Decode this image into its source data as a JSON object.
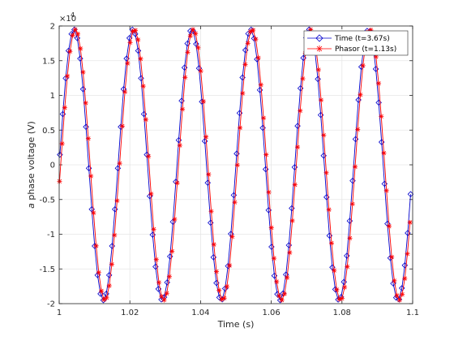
{
  "chart_data": {
    "type": "line",
    "title": "",
    "xlabel": "Time (s)",
    "ylabel": "a phase voltage (V)",
    "ylabel_parts": {
      "var": "a",
      "rest": " phase voltage (V)"
    },
    "exponent_base": "×10",
    "exponent_power": "4",
    "xlim": [
      1.0,
      1.1
    ],
    "ylim": [
      -2.0,
      2.0
    ],
    "y_scale_factor": 10000,
    "xticks": [
      "1",
      "1.02",
      "1.04",
      "1.06",
      "1.08",
      "1.1"
    ],
    "yticks": [
      "-2",
      "-1.5",
      "-1",
      "-0.5",
      "0",
      "0.5",
      "1",
      "1.5",
      "2"
    ],
    "grid": true,
    "legend_position": "top-right",
    "series": [
      {
        "name": "Time (t=3.67s)",
        "color": "#0000cc",
        "marker": "diamond",
        "amplitude": 1.95,
        "frequency_hz": 60,
        "phase_rad": 0.0,
        "x_start": 1.0002,
        "x_step": 0.00082,
        "x_end": 1.0998
      },
      {
        "name": "Phasor (t=1.13s)",
        "color": "#ff0000",
        "marker": "star",
        "amplitude": 1.95,
        "frequency_hz": 60,
        "phase_rad": -0.16,
        "x_start": 1.0001,
        "x_step": 0.00074,
        "x_end": 1.0993
      }
    ]
  }
}
